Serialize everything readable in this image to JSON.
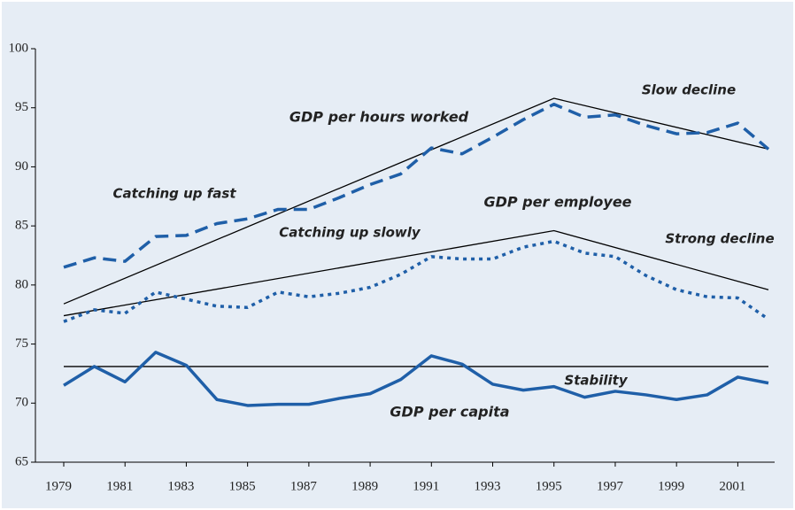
{
  "chart_data": {
    "type": "line",
    "x": [
      1979,
      1980,
      1981,
      1982,
      1983,
      1984,
      1985,
      1986,
      1987,
      1988,
      1989,
      1990,
      1991,
      1992,
      1993,
      1994,
      1995,
      1996,
      1997,
      1998,
      1999,
      2000,
      2001,
      2002
    ],
    "series": [
      {
        "name": "GDP per hours worked",
        "color": "#1f5fa8",
        "dash": "dashed",
        "values": [
          81.5,
          82.3,
          82.0,
          84.1,
          84.2,
          85.2,
          85.6,
          86.4,
          86.4,
          87.4,
          88.5,
          89.4,
          91.6,
          91.1,
          92.5,
          94.0,
          95.3,
          94.2,
          94.4,
          93.5,
          92.8,
          92.9,
          93.7,
          91.5
        ]
      },
      {
        "name": "GDP per employee",
        "color": "#1f5fa8",
        "dash": "dotted",
        "values": [
          76.9,
          77.9,
          77.6,
          79.4,
          78.8,
          78.2,
          78.1,
          79.4,
          79.0,
          79.3,
          79.8,
          80.9,
          82.4,
          82.2,
          82.2,
          83.2,
          83.7,
          82.7,
          82.4,
          80.8,
          79.6,
          79.0,
          78.9,
          77.1
        ]
      },
      {
        "name": "GDP per capita",
        "color": "#1f5fa8",
        "dash": "solid",
        "values": [
          71.5,
          73.1,
          71.8,
          74.3,
          73.2,
          70.3,
          69.8,
          69.9,
          69.9,
          70.4,
          70.8,
          72.0,
          74.0,
          73.3,
          71.6,
          71.1,
          71.4,
          70.5,
          71.0,
          70.7,
          70.3,
          70.7,
          72.2,
          71.7
        ]
      }
    ],
    "trend_lines": [
      {
        "x": [
          1979,
          1995,
          2002
        ],
        "values": [
          78.4,
          95.8,
          91.5
        ],
        "color": "#000000"
      },
      {
        "x": [
          1979,
          1995,
          2002
        ],
        "values": [
          77.4,
          84.6,
          79.6
        ],
        "color": "#000000"
      },
      {
        "x": [
          1979,
          2002
        ],
        "values": [
          73.1,
          73.1
        ],
        "color": "#000000"
      }
    ],
    "annotations": [
      "Slow decline",
      "Catching up fast",
      "Catching up slowly",
      "Strong decline",
      "Stability"
    ],
    "xlim": [
      1979,
      2002
    ],
    "ylim": [
      65,
      100
    ],
    "xticks": [
      1979,
      1981,
      1983,
      1985,
      1987,
      1989,
      1991,
      1993,
      1995,
      1997,
      1999,
      2001
    ],
    "yticks": [
      65,
      70,
      75,
      80,
      85,
      90,
      95,
      100
    ]
  }
}
